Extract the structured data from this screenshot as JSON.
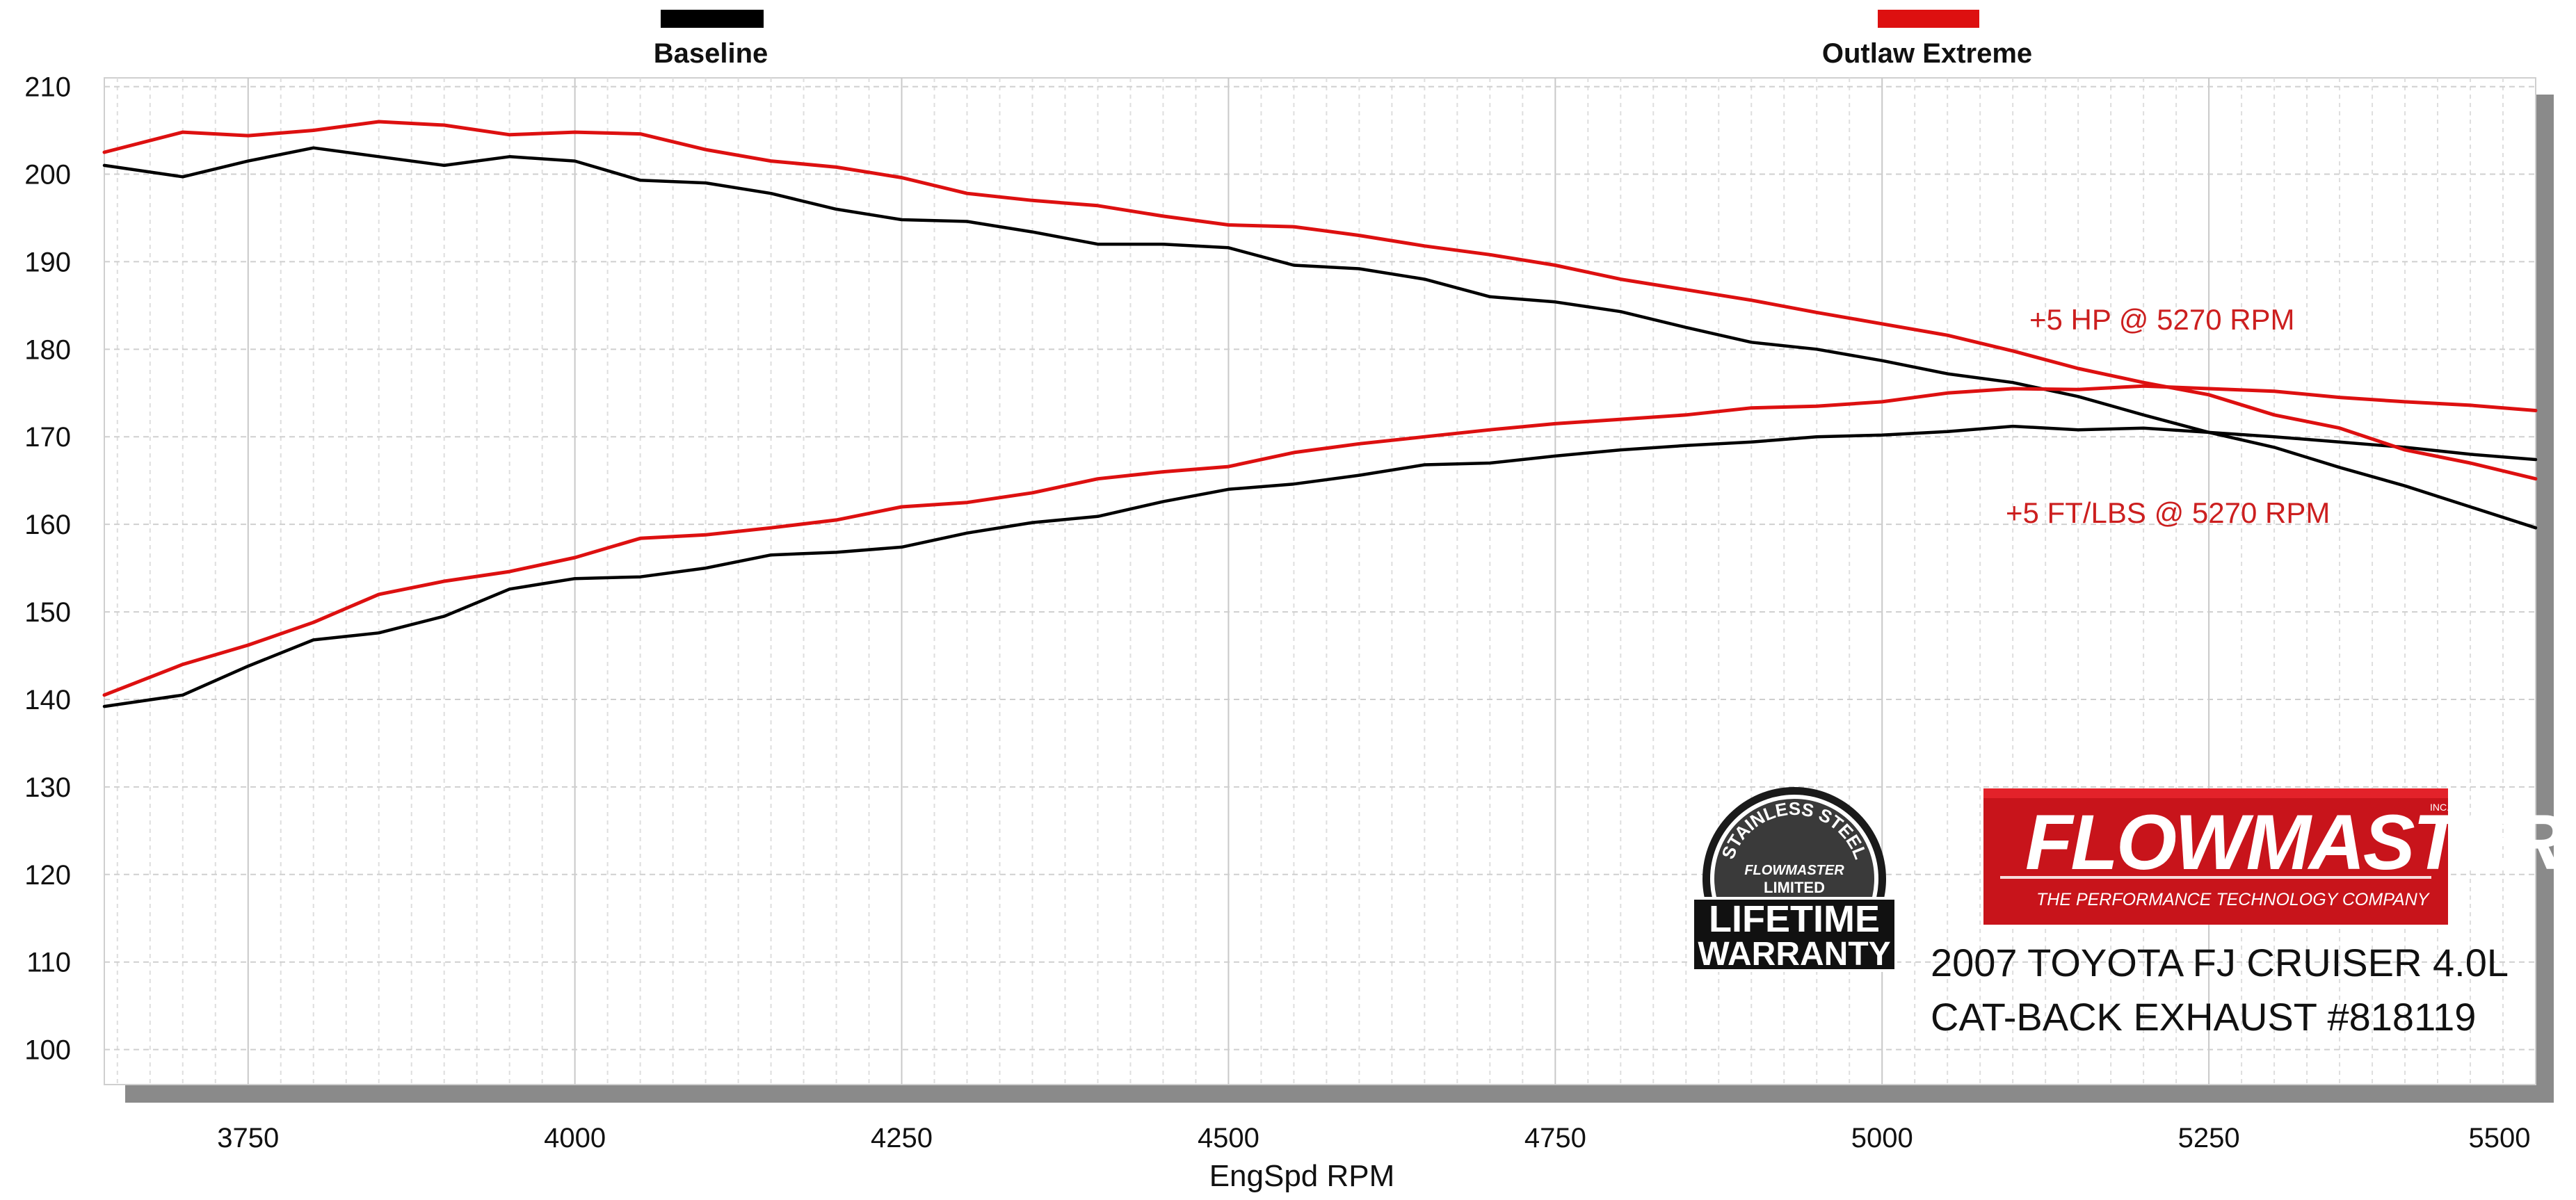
{
  "chart_data": {
    "type": "line",
    "xlabel": "EngSpd  RPM",
    "ylabel": "",
    "xlim": [
      3640,
      5500
    ],
    "ylim": [
      96,
      211
    ],
    "x_ticks": [
      3750,
      4000,
      4250,
      4500,
      4750,
      5000,
      5250,
      5500
    ],
    "y_ticks": [
      100,
      110,
      120,
      130,
      140,
      150,
      160,
      170,
      180,
      190,
      200,
      210
    ],
    "grid": true,
    "legend_position": "top",
    "legend": [
      {
        "label": "Baseline",
        "color": "#000000"
      },
      {
        "label": "Outlaw Extreme",
        "color": "#dd1010"
      }
    ],
    "series": [
      {
        "name": "Baseline",
        "measure": "hp",
        "color": "#000000",
        "x": [
          3640,
          3700,
          3750,
          3800,
          3850,
          3900,
          3950,
          4000,
          4050,
          4100,
          4150,
          4200,
          4250,
          4300,
          4350,
          4400,
          4450,
          4500,
          4550,
          4600,
          4650,
          4700,
          4750,
          4800,
          4850,
          4900,
          4950,
          5000,
          5050,
          5100,
          5150,
          5200,
          5250,
          5300,
          5350,
          5400,
          5450,
          5500
        ],
        "y": [
          201,
          199.7,
          201.5,
          203,
          202,
          201,
          202,
          201.5,
          199.3,
          199,
          197.8,
          196,
          194.8,
          194.6,
          193.4,
          192,
          192,
          191.6,
          189.6,
          189.2,
          188,
          186,
          185.4,
          184.3,
          182.5,
          180.8,
          180,
          178.7,
          177.2,
          176.2,
          174.6,
          172.5,
          170.5,
          168.8,
          166.5,
          164.4,
          162,
          159.6
        ]
      },
      {
        "name": "Outlaw Extreme",
        "measure": "hp",
        "color": "#dd1010",
        "x": [
          3640,
          3700,
          3750,
          3800,
          3850,
          3900,
          3950,
          4000,
          4050,
          4100,
          4150,
          4200,
          4250,
          4300,
          4350,
          4400,
          4450,
          4500,
          4550,
          4600,
          4650,
          4700,
          4750,
          4800,
          4850,
          4900,
          4950,
          5000,
          5050,
          5100,
          5150,
          5200,
          5250,
          5300,
          5350,
          5400,
          5450,
          5500
        ],
        "y": [
          202.5,
          204.8,
          204.4,
          205,
          206,
          205.6,
          204.5,
          204.8,
          204.6,
          202.8,
          201.5,
          200.8,
          199.6,
          197.8,
          197,
          196.4,
          195.2,
          194.2,
          194,
          193,
          191.8,
          190.8,
          189.6,
          188,
          186.8,
          185.6,
          184.2,
          182.9,
          181.6,
          179.8,
          177.8,
          176.2,
          174.8,
          172.5,
          171,
          168.5,
          167,
          165.2
        ]
      },
      {
        "name": "Baseline",
        "measure": "torque",
        "color": "#000000",
        "x": [
          3640,
          3700,
          3750,
          3800,
          3850,
          3900,
          3950,
          4000,
          4050,
          4100,
          4150,
          4200,
          4250,
          4300,
          4350,
          4400,
          4450,
          4500,
          4550,
          4600,
          4650,
          4700,
          4750,
          4800,
          4850,
          4900,
          4950,
          5000,
          5050,
          5100,
          5150,
          5200,
          5250,
          5300,
          5350,
          5400,
          5450,
          5500
        ],
        "y": [
          139.2,
          140.5,
          143.8,
          146.8,
          147.6,
          149.5,
          152.6,
          153.8,
          154,
          155,
          156.5,
          156.8,
          157.4,
          159,
          160.2,
          160.9,
          162.6,
          164,
          164.6,
          165.6,
          166.8,
          167,
          167.8,
          168.5,
          169,
          169.4,
          170,
          170.2,
          170.6,
          171.2,
          170.8,
          171,
          170.5,
          170,
          169.4,
          168.8,
          168,
          167.4
        ]
      },
      {
        "name": "Outlaw Extreme",
        "measure": "torque",
        "color": "#dd1010",
        "x": [
          3640,
          3700,
          3750,
          3800,
          3850,
          3900,
          3950,
          4000,
          4050,
          4100,
          4150,
          4200,
          4250,
          4300,
          4350,
          4400,
          4450,
          4500,
          4550,
          4600,
          4650,
          4700,
          4750,
          4800,
          4850,
          4900,
          4950,
          5000,
          5050,
          5100,
          5150,
          5200,
          5250,
          5300,
          5350,
          5400,
          5450,
          5500
        ],
        "y": [
          140.5,
          144,
          146.2,
          148.8,
          152,
          153.5,
          154.6,
          156.2,
          158.4,
          158.8,
          159.6,
          160.5,
          162,
          162.5,
          163.6,
          165.2,
          166,
          166.6,
          168.2,
          169.2,
          170,
          170.8,
          171.5,
          172,
          172.5,
          173.3,
          173.5,
          174,
          175,
          175.5,
          175.4,
          175.8,
          175.5,
          175.2,
          174.5,
          174,
          173.6,
          173
        ]
      }
    ],
    "annotations": [
      {
        "text": "+5 HP @ 5270 RPM",
        "color": "#cc1f1f"
      },
      {
        "text": "+5 FT/LBS @ 5270 RPM",
        "color": "#cc1f1f"
      }
    ]
  },
  "caption": {
    "line1": "2007 TOYOTA FJ CRUISER 4.0L",
    "line2": "CAT-BACK EXHAUST #818119"
  },
  "logos": {
    "flowmaster": {
      "title": "FLOWMASTER",
      "inc": "INC.",
      "tagline": "THE PERFORMANCE TECHNOLOGY COMPANY",
      "color": "#c8141b"
    },
    "warranty": {
      "arc": "STAINLESS STEEL",
      "brand": "FLOWMASTER",
      "limited": "LIMITED",
      "line1": "LIFETIME",
      "line2": "WARRANTY"
    }
  }
}
